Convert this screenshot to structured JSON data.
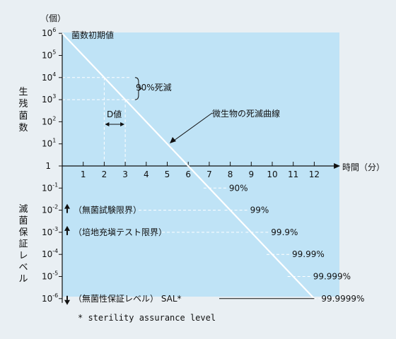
{
  "colors": {
    "background": "#e9eff3",
    "plot_fill": "#bfe3f6",
    "ink": "#111111",
    "line": "#ffffff",
    "dashed": "#ffffff"
  },
  "chart_data": {
    "type": "line",
    "y_unit": "（個）",
    "y_axis_label_upper": "生残菌数",
    "y_axis_label_lower": "滅菌保証レベル",
    "x_axis_label": "時間（分）",
    "x_ticks": [
      "1",
      "2",
      "3",
      "4",
      "5",
      "6",
      "7",
      "8",
      "9",
      "10",
      "11",
      "12"
    ],
    "y_ticks": [
      {
        "base": "10",
        "exp": "6"
      },
      {
        "base": "10",
        "exp": "5"
      },
      {
        "base": "10",
        "exp": "4"
      },
      {
        "base": "10",
        "exp": "3"
      },
      {
        "base": "10",
        "exp": "2"
      },
      {
        "base": "10",
        "exp": "1"
      },
      {
        "base": "1",
        "exp": ""
      },
      {
        "base": "10",
        "exp": "-1"
      },
      {
        "base": "10",
        "exp": "-2"
      },
      {
        "base": "10",
        "exp": "-3"
      },
      {
        "base": "10",
        "exp": "-4"
      },
      {
        "base": "10",
        "exp": "-5"
      },
      {
        "base": "10",
        "exp": "-6"
      }
    ],
    "y_scale": "log10",
    "xlim": [
      0,
      13
    ],
    "ylim_log10": [
      -6,
      6
    ],
    "series": [
      {
        "name": "微生物の死滅曲線",
        "x": [
          0,
          12
        ],
        "y_log10": [
          6,
          -6
        ]
      }
    ],
    "annotations": {
      "initial_count": "菌数初期値",
      "kill_90": "90%死滅",
      "d_value": "D値",
      "curve_name": "微生物の死滅曲線",
      "kill_levels": [
        {
          "label": "90%",
          "x": 7,
          "y_log10": -1
        },
        {
          "label": "99%",
          "x": 8,
          "y_log10": -2
        },
        {
          "label": "99.9%",
          "x": 9,
          "y_log10": -3
        },
        {
          "label": "99.99%",
          "x": 10,
          "y_log10": -4
        },
        {
          "label": "99.999%",
          "x": 11,
          "y_log10": -5
        },
        {
          "label": "99.9999%",
          "x": 12,
          "y_log10": -6
        }
      ],
      "limits": [
        {
          "label": "（無菌試験限界）",
          "y_log10": -2
        },
        {
          "label": "（培地充塡テスト限界）",
          "y_log10": -3
        },
        {
          "label": "（無菌性保証レベル） SAL*",
          "y_log10": -6
        }
      ],
      "footnote": "* sterility assurance level"
    }
  }
}
